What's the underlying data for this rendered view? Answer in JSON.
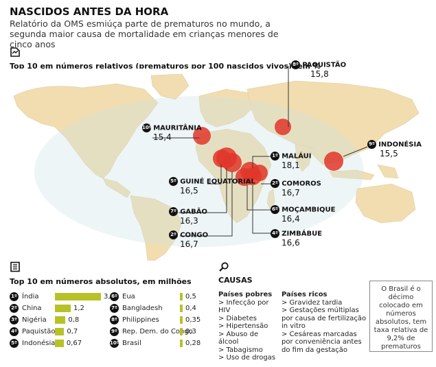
{
  "header": {
    "title": "NASCIDOS ANTES DA HORA",
    "subtitle": "Relatório da OMS esmiúça parte de prematuros no mundo, a segunda maior causa de mortalidade em crianças menores de cinco anos"
  },
  "relative_section": {
    "heading": "Top 10 em números relativos (prematuros por 100 nascidos vivos), em %",
    "icon": "chart-icon"
  },
  "absolute_section": {
    "heading": "Top 10 em números absolutos, em milhões",
    "icon": "document-icon"
  },
  "colors": {
    "bar": "#b6c226",
    "bubble": "#e0362a",
    "land": "#f2ddb0",
    "ocean": "#d8e8ea"
  },
  "chart_data": [
    {
      "type": "scatter",
      "title": "Top 10 em números relativos (prematuros por 100 nascidos vivos), em %",
      "points": [
        {
          "rank": "1º",
          "country": "MALÁUI",
          "value": "18,1"
        },
        {
          "rank": "2º",
          "country": "COMOROS",
          "value": "16,7"
        },
        {
          "rank": "2º",
          "country": "CONGO",
          "value": "16,7"
        },
        {
          "rank": "4º",
          "country": "ZIMBÁBUE",
          "value": "16,6"
        },
        {
          "rank": "5º",
          "country": "GUINÉ EQUATORIAL",
          "value": "16,5"
        },
        {
          "rank": "6º",
          "country": "MOÇAMBIQUE",
          "value": "16,4"
        },
        {
          "rank": "7º",
          "country": "GABÃO",
          "value": "16,3"
        },
        {
          "rank": "8º",
          "country": "PAQUISTÃO",
          "value": "15,8"
        },
        {
          "rank": "9º",
          "country": "INDONÉSIA",
          "value": "15,5"
        },
        {
          "rank": "10º",
          "country": "MAURITÂNIA",
          "value": "15,4"
        }
      ]
    },
    {
      "type": "bar",
      "title": "Top 10 em números absolutos, em milhões",
      "series": [
        {
          "rows": [
            {
              "rank": "1º",
              "country": "Índia",
              "value": 3.5,
              "label": "3,5"
            },
            {
              "rank": "2º",
              "country": "China",
              "value": 1.2,
              "label": "1,2"
            },
            {
              "rank": "3º",
              "country": "Nigéria",
              "value": 0.8,
              "label": "0,8"
            },
            {
              "rank": "4º",
              "country": "Paquistão",
              "value": 0.7,
              "label": "0,7"
            },
            {
              "rank": "5º",
              "country": "Indonésia",
              "value": 0.67,
              "label": "0,67"
            },
            {
              "rank": "6º",
              "country": "Eua",
              "value": 0.5,
              "label": "0,5"
            },
            {
              "rank": "7º",
              "country": "Bangladesh",
              "value": 0.4,
              "label": "0,4"
            },
            {
              "rank": "8º",
              "country": "Philippines",
              "value": 0.35,
              "label": "0,35"
            },
            {
              "rank": "9º",
              "country": "Rep. Dem. do Congo",
              "value": 0.3,
              "label": "0,3"
            },
            {
              "rank": "10º",
              "country": "Brasil",
              "value": 0.28,
              "label": "0,28"
            }
          ]
        }
      ]
    }
  ],
  "causes": {
    "heading": "CAUSAS",
    "icon": "magnifier-icon",
    "poor": {
      "title": "Países pobres",
      "items": [
        "> Infecção por HIV",
        "> Diabetes",
        "> Hipertensão",
        "> Abuso de álcool",
        "> Tabagismo",
        "> Uso de drogas"
      ]
    },
    "rich": {
      "title": "Países ricos",
      "items": [
        "> Gravidez tardia",
        "> Gestações múltiplas por causa de fertilização in vitro",
        "> Cesáreas marcadas por conveniência antes do fim da gestação"
      ]
    }
  },
  "brazil_note": "O Brasil é o décimo colocado em números absolutos, tem taxa relativa de 9,2% de prematuros"
}
